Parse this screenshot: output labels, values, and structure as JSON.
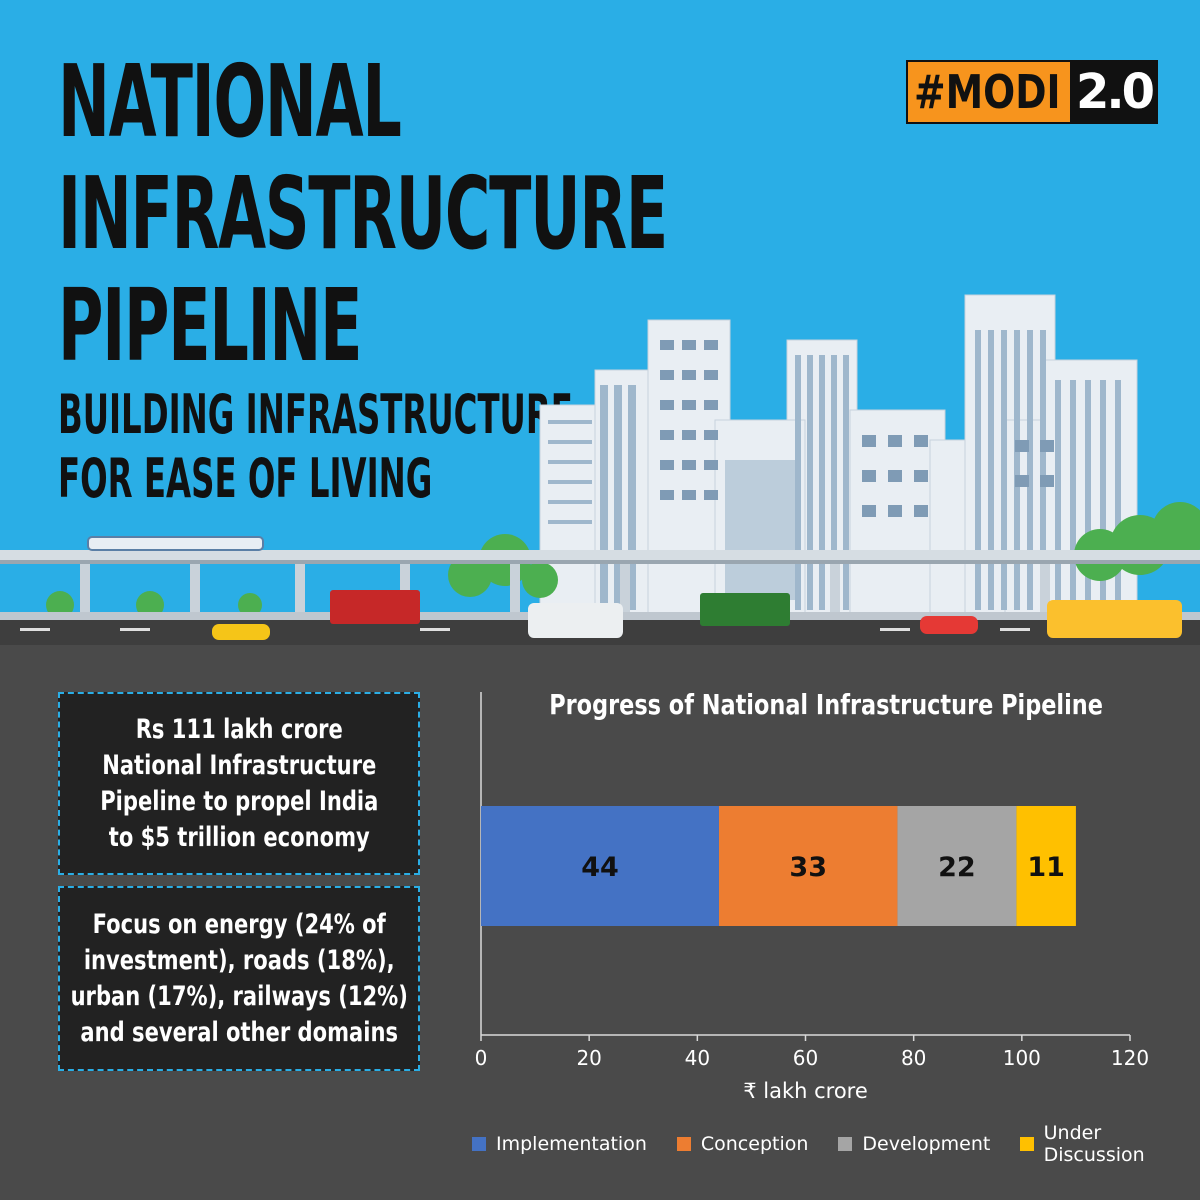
{
  "header": {
    "title_line1": "NATIONAL",
    "title_line2": "INFRASTRUCTURE",
    "title_line3": "PIPELINE",
    "subtitle_line1": "BUILDING INFRASTRUCTURE",
    "subtitle_line2": "FOR EASE OF LIVING"
  },
  "logo": {
    "hash_text": "#MODI",
    "version": "2.0"
  },
  "info": {
    "box1": [
      "Rs 111 lakh crore",
      "National Infrastructure",
      "Pipeline to propel India",
      "to $5 trillion economy"
    ],
    "box2": [
      "Focus on energy (24% of",
      "investment), roads (18%),",
      "urban (17%), railways (12%)",
      "and several other domains"
    ]
  },
  "chart_data": {
    "type": "bar",
    "orientation": "horizontal-stacked",
    "title": "Progress of National Infrastructure Pipeline",
    "xlabel": "₹ lakh crore",
    "xlim": [
      0,
      120
    ],
    "xticks": [
      0,
      20,
      40,
      60,
      80,
      100,
      120
    ],
    "grid": false,
    "legend_position": "bottom",
    "series": [
      {
        "name": "Implementation",
        "value": 44,
        "color": "#4472c4"
      },
      {
        "name": "Conception",
        "value": 33,
        "color": "#ed7d31"
      },
      {
        "name": "Development",
        "value": 22,
        "color": "#a5a5a5"
      },
      {
        "name": "Under Discussion",
        "value": 11,
        "color": "#ffc000"
      }
    ]
  },
  "colors": {
    "sky": "#2aaee6",
    "ground": "#4a4a4a",
    "box_bg": "#222222",
    "logo_orange": "#f7941d"
  }
}
